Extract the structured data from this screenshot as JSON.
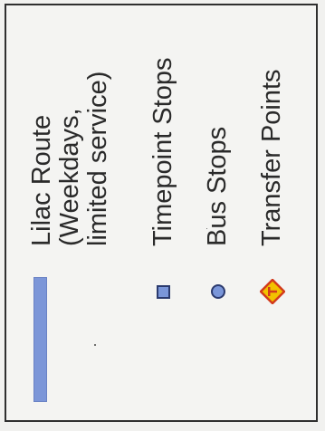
{
  "legend": {
    "route": {
      "label": "Lilac Route\n(Weekdays,\nlimited service)",
      "color": "#7c96d8"
    },
    "items": [
      {
        "label": "Timepoint Stops",
        "symbol": "square-stop-icon",
        "color": "#7a96d9"
      },
      {
        "label": "Bus Stops",
        "symbol": "circle-stop-icon",
        "color": "#7a96d9"
      },
      {
        "label": "Transfer Points",
        "symbol": "transfer-diamond-icon",
        "color": "#f2c200",
        "accent": "#d23a1c"
      }
    ]
  }
}
